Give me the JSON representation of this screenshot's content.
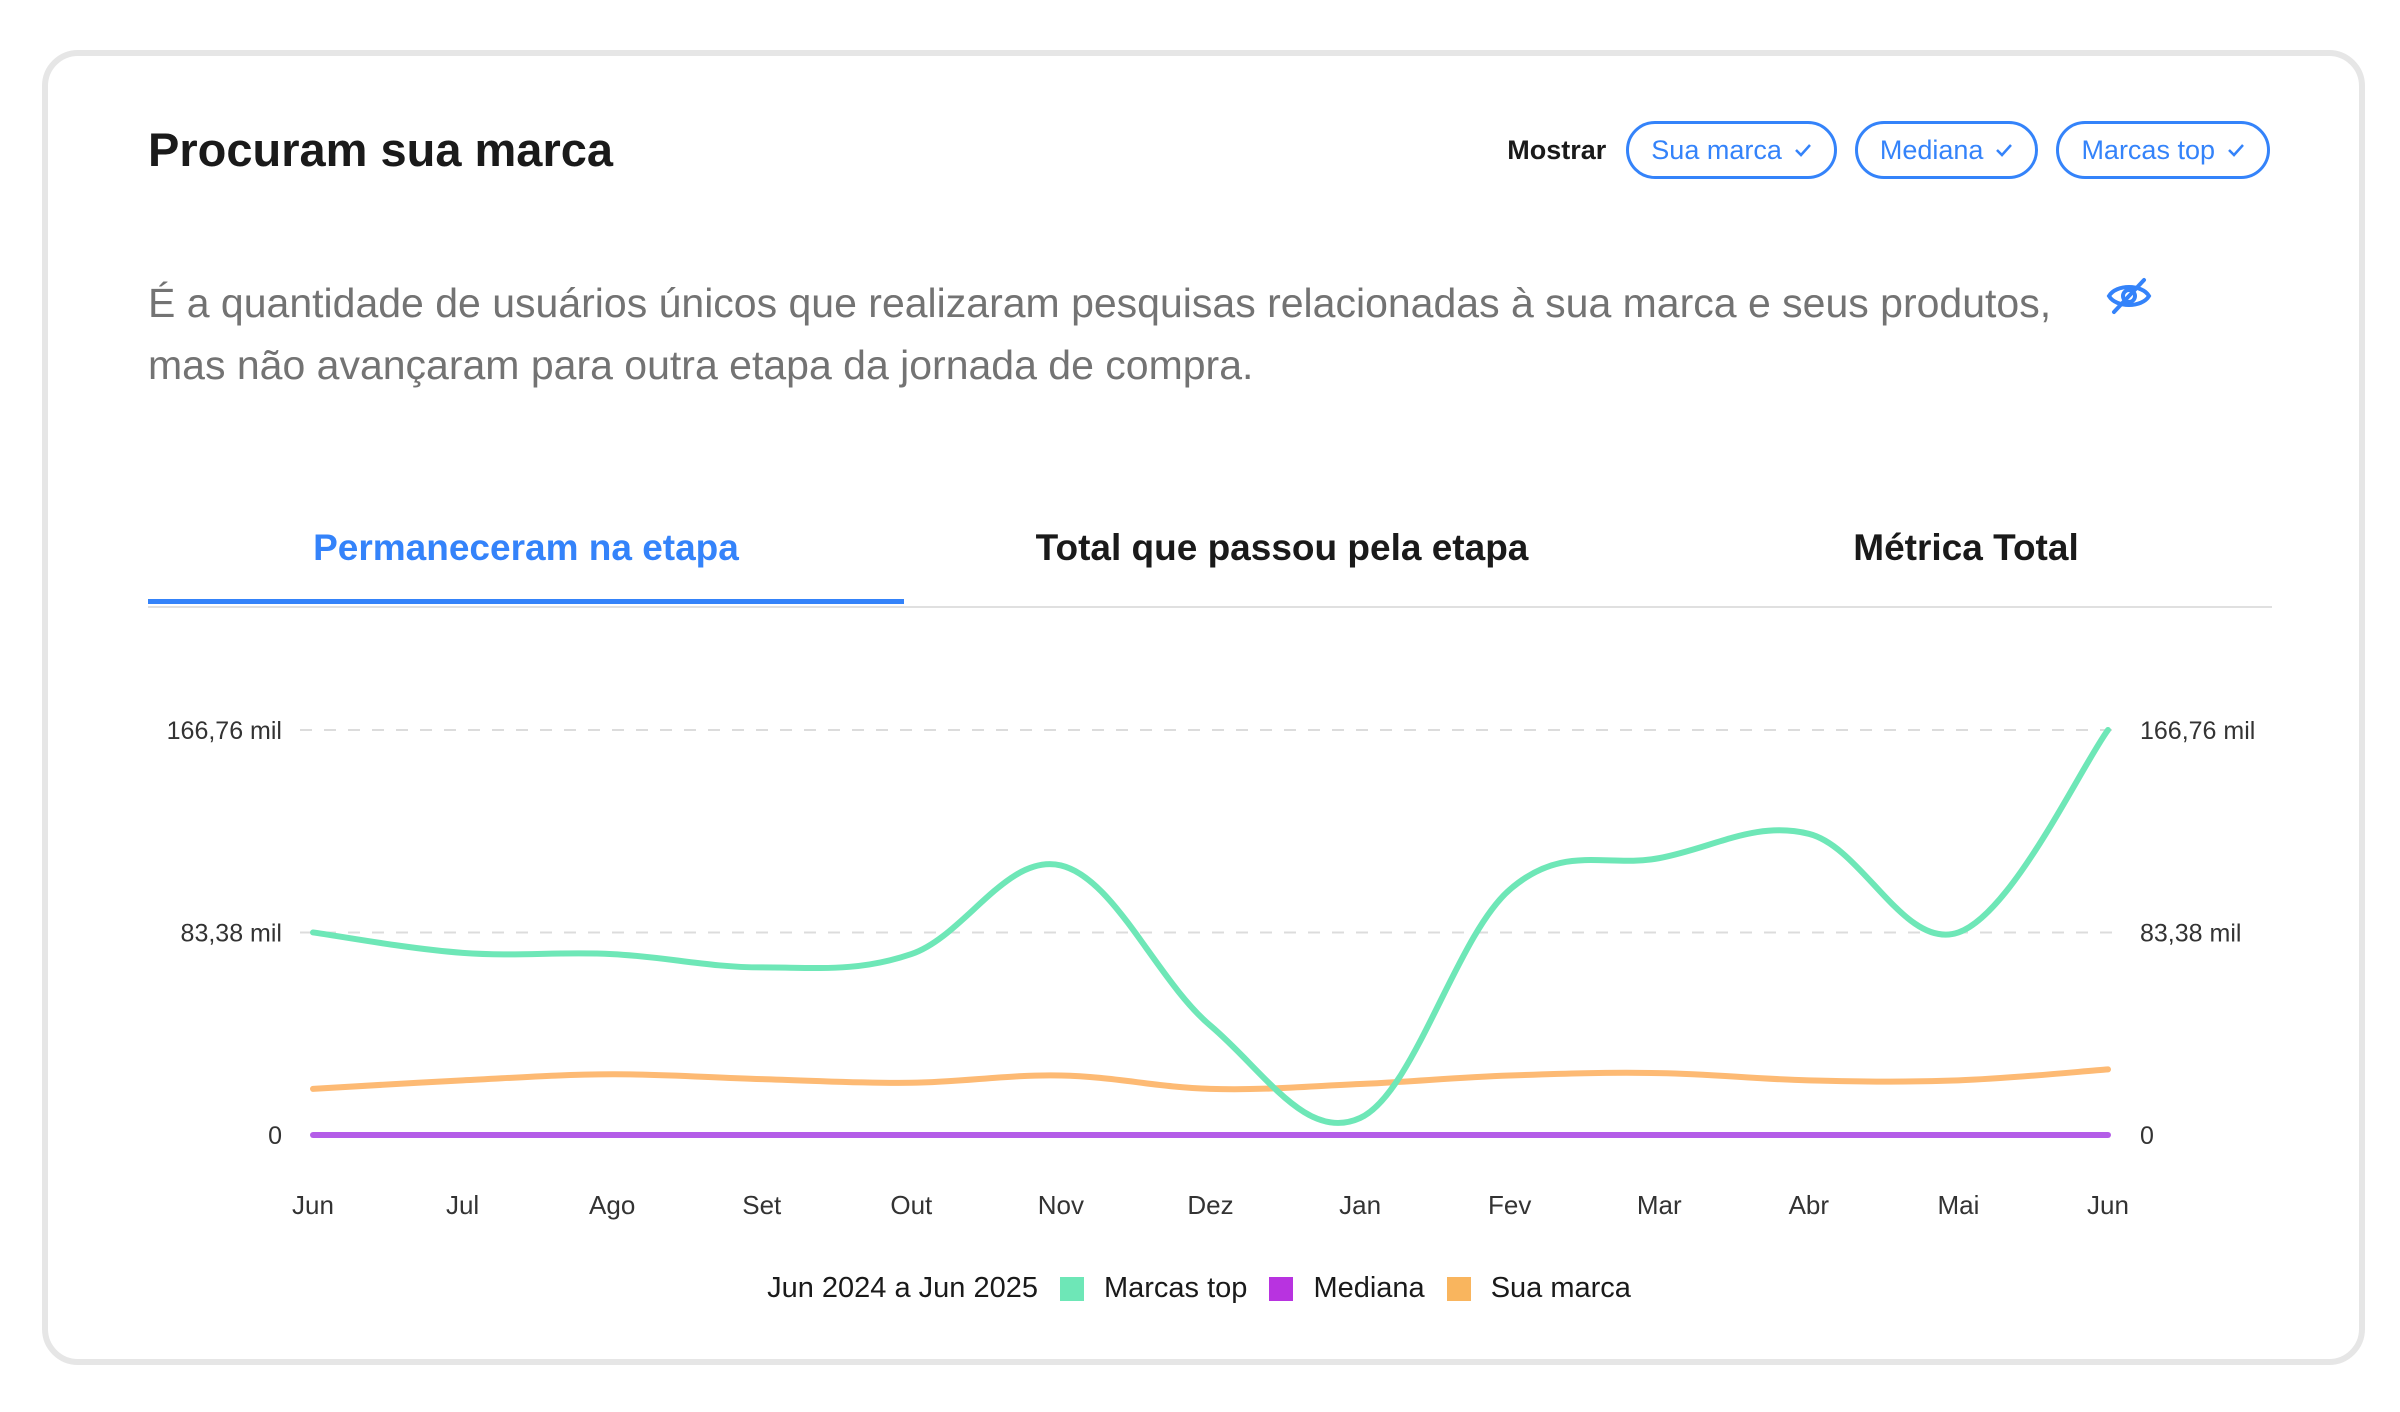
{
  "header": {
    "title": "Procuram sua marca",
    "show_label": "Mostrar",
    "filters": [
      {
        "label": "Sua marca"
      },
      {
        "label": "Mediana"
      },
      {
        "label": "Marcas top"
      }
    ]
  },
  "description": "É a quantidade de usuários únicos que realizaram pesquisas relacionadas à sua marca e seus produtos, mas não avançaram para outra etapa da jornada de compra.",
  "icons": {
    "visibility": "eye-off-icon",
    "check": "check-icon"
  },
  "colors": {
    "accent": "#3483fa",
    "marcas_top": "#6ee7b7",
    "mediana": "#b45de8",
    "sua_marca": "#fdba74"
  },
  "tabs": [
    {
      "label": "Permaneceram na etapa",
      "active": true
    },
    {
      "label": "Total que passou pela etapa",
      "active": false
    },
    {
      "label": "Métrica Total",
      "active": false
    }
  ],
  "chart_data": {
    "type": "line",
    "categories": [
      "Jun",
      "Jul",
      "Ago",
      "Set",
      "Out",
      "Nov",
      "Dez",
      "Jan",
      "Fev",
      "Mar",
      "Abr",
      "Mai",
      "Jun"
    ],
    "y_ticks": [
      {
        "value": 0,
        "label": "0"
      },
      {
        "value": 83.38,
        "label": "83,38 mil"
      },
      {
        "value": 166.76,
        "label": "166,76 mil"
      }
    ],
    "ylim": [
      0,
      166.76
    ],
    "grid": "dashed horizontal",
    "legend_placement": "bottom",
    "period_label": "Jun 2024 a Jun 2025",
    "series": [
      {
        "name": "Marcas top",
        "color": "#6ee7b7",
        "values": [
          83.4,
          75.0,
          74.5,
          69.0,
          74.5,
          111.0,
          45.0,
          7.0,
          101.0,
          114.0,
          124.0,
          83.4,
          166.76
        ]
      },
      {
        "name": "Mediana",
        "color": "#b45de8",
        "values": [
          0,
          0,
          0,
          0,
          0,
          0,
          0,
          0,
          0,
          0,
          0,
          0,
          0
        ]
      },
      {
        "name": "Sua marca",
        "color": "#fdba74",
        "values": [
          19.0,
          22.5,
          25.0,
          23.0,
          21.5,
          24.5,
          19.0,
          21.0,
          24.5,
          25.5,
          22.5,
          22.5,
          27.0
        ]
      }
    ]
  }
}
